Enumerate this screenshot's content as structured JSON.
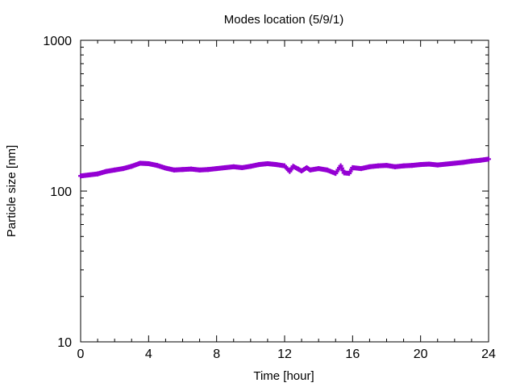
{
  "chart_data": {
    "type": "scatter",
    "title": "Modes location (5/9/1)",
    "xlabel": "Time [hour]",
    "ylabel": "Particle size [nm]",
    "xlim": [
      0,
      24
    ],
    "ylim": [
      10,
      1000
    ],
    "y_scale": "log",
    "grid": false,
    "legend": "none",
    "x_ticks": [
      0,
      4,
      8,
      12,
      16,
      20,
      24
    ],
    "x_tick_labels": [
      "0",
      "4",
      "8",
      "12",
      "16",
      "20",
      "24"
    ],
    "y_ticks": [
      10,
      100,
      1000
    ],
    "y_tick_labels": [
      "10",
      "100",
      "1000"
    ],
    "series": [
      {
        "color": "#9400d3",
        "x": [
          0,
          0.5,
          1,
          1.5,
          2,
          2.5,
          3,
          3.5,
          4,
          4.5,
          5,
          5.5,
          6,
          6.5,
          7,
          7.5,
          8,
          8.5,
          9,
          9.5,
          10,
          10.5,
          11,
          11.5,
          12,
          12.3,
          12.5,
          12.8,
          13,
          13.3,
          13.5,
          14,
          14.5,
          15,
          15.3,
          15.5,
          15.8,
          16,
          16.5,
          17,
          17.5,
          18,
          18.5,
          19,
          19.5,
          20,
          20.5,
          21,
          21.5,
          22,
          22.5,
          23,
          23.5,
          24
        ],
        "y": [
          126,
          128,
          130,
          135,
          138,
          141,
          146,
          153,
          152,
          148,
          142,
          138,
          139,
          140,
          138,
          139,
          141,
          143,
          145,
          143,
          146,
          150,
          152,
          150,
          147,
          135,
          146,
          140,
          136,
          143,
          138,
          141,
          138,
          131,
          147,
          132,
          131,
          143,
          141,
          145,
          147,
          148,
          145,
          147,
          148,
          150,
          151,
          149,
          151,
          153,
          155,
          158,
          160,
          163
        ]
      }
    ]
  }
}
